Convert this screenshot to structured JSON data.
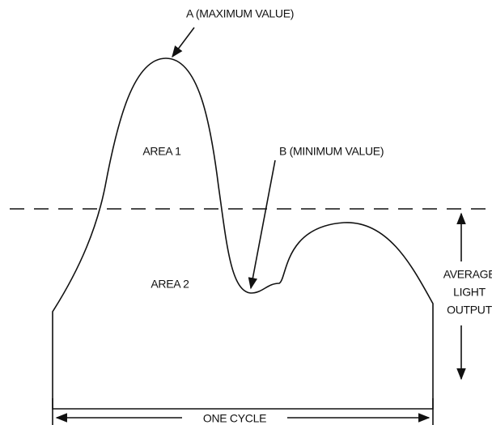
{
  "labels": {
    "max": "A (MAXIMUM VALUE)",
    "min": "B (MINIMUM VALUE)",
    "area1": "AREA 1",
    "area2": "AREA 2",
    "average": [
      "AVERAGE",
      "LIGHT",
      "OUTPUT"
    ],
    "cycle": "ONE CYCLE"
  }
}
